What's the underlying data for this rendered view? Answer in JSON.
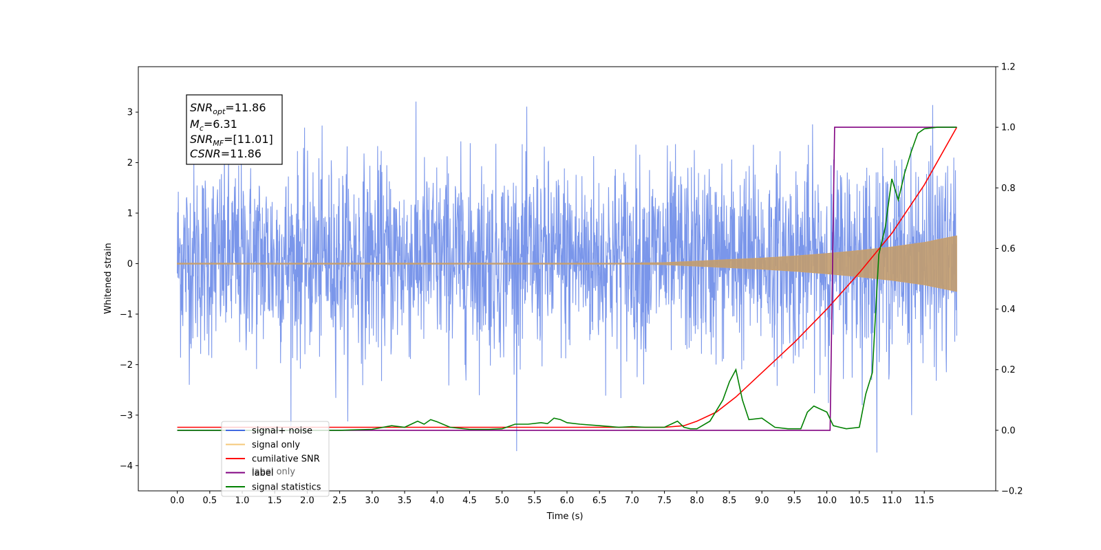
{
  "chart_data": {
    "type": "line",
    "xlabel": "Time (s)",
    "ylabel": "Whitened strain",
    "xlim": [
      -0.6,
      12.6
    ],
    "ylim_left": [
      -4.5,
      3.9
    ],
    "ylim_right": [
      -0.2,
      1.2
    ],
    "x_ticks": [
      "0.0",
      "0.5",
      "1.0",
      "1.5",
      "2.0",
      "2.5",
      "3.0",
      "3.5",
      "4.0",
      "4.5",
      "5.0",
      "5.5",
      "6.0",
      "6.5",
      "7.0",
      "7.5",
      "8.0",
      "8.5",
      "9.0",
      "9.5",
      "10.0",
      "10.5",
      "11.0",
      "11.5"
    ],
    "y_ticks_left": [
      "3",
      "2",
      "1",
      "0",
      "−1",
      "−2",
      "−3",
      "−4"
    ],
    "y_ticks_right": [
      "1.2",
      "1.0",
      "0.8",
      "0.6",
      "0.4",
      "0.2",
      "0.0",
      "−0.2"
    ],
    "info_box": {
      "snr_opt": {
        "symbol": "SNR",
        "sub": "opt",
        "value": "=11.86"
      },
      "mc": {
        "symbol": "M",
        "sub": "c",
        "value": "=6.31"
      },
      "snr_mf": {
        "symbol": "SNR",
        "sub": "MF",
        "value": "=[11.01]"
      },
      "csnr": {
        "symbol": "CSNR",
        "value": "=11.86"
      }
    },
    "legend": {
      "placement": "lower-left",
      "entries": [
        {
          "label": "signal+ noise",
          "color": "#4169e1"
        },
        {
          "label": "signal only",
          "color": "#f5c87a"
        },
        {
          "label": "cumilative SNR",
          "color": "#ff0000"
        },
        {
          "label": "label",
          "color": "#800080"
        },
        {
          "label": "signal statistics",
          "color": "#008000"
        }
      ],
      "hidden_entry": "label only"
    },
    "series": [
      {
        "name": "signal+ noise",
        "axis": "left",
        "color": "#4169e1",
        "note_values": {
          "x_range": [
            0.0,
            12.0
          ],
          "typical_band": [
            -1.9,
            2.1
          ],
          "peak_max": 3.55,
          "peak_min": -4.12
        }
      },
      {
        "name": "signal only",
        "axis": "left",
        "color": "#f5c87a",
        "envelope": {
          "x": [
            0.0,
            7.0,
            7.5,
            8.0,
            8.5,
            9.0,
            9.5,
            10.0,
            10.5,
            11.0,
            11.5,
            12.0
          ],
          "amp": [
            0.01,
            0.01,
            0.02,
            0.05,
            0.08,
            0.11,
            0.15,
            0.2,
            0.26,
            0.33,
            0.42,
            0.55
          ]
        }
      },
      {
        "name": "cumilative SNR",
        "axis": "right",
        "color": "#ff0000",
        "x": [
          0.0,
          7.5,
          7.8,
          8.0,
          8.3,
          8.6,
          9.0,
          9.5,
          10.0,
          10.5,
          11.0,
          11.5,
          12.0
        ],
        "y": [
          0.01,
          0.01,
          0.015,
          0.03,
          0.06,
          0.11,
          0.19,
          0.29,
          0.4,
          0.52,
          0.65,
          0.81,
          1.0
        ]
      },
      {
        "name": "label",
        "axis": "right",
        "color": "#800080",
        "x": [
          0.0,
          10.05,
          10.12,
          12.0
        ],
        "y": [
          0.0,
          0.0,
          1.0,
          1.0
        ]
      },
      {
        "name": "signal statistics",
        "axis": "right",
        "color": "#008000",
        "x": [
          0.0,
          2.5,
          3.0,
          3.3,
          3.5,
          3.7,
          3.8,
          3.9,
          4.0,
          4.2,
          4.5,
          4.8,
          5.0,
          5.2,
          5.4,
          5.6,
          5.7,
          5.8,
          5.9,
          6.0,
          6.2,
          6.5,
          6.8,
          7.0,
          7.2,
          7.5,
          7.7,
          7.8,
          7.9,
          8.0,
          8.2,
          8.4,
          8.5,
          8.6,
          8.7,
          8.8,
          9.0,
          9.2,
          9.4,
          9.6,
          9.7,
          9.8,
          9.9,
          10.0,
          10.1,
          10.2,
          10.3,
          10.5,
          10.6,
          10.7,
          10.8,
          10.9,
          11.0,
          11.1,
          11.2,
          11.3,
          11.4,
          11.5,
          11.7,
          12.0
        ],
        "y": [
          0.0,
          0.0,
          0.003,
          0.015,
          0.01,
          0.03,
          0.02,
          0.035,
          0.028,
          0.01,
          0.003,
          0.003,
          0.005,
          0.02,
          0.02,
          0.025,
          0.022,
          0.04,
          0.035,
          0.025,
          0.02,
          0.015,
          0.01,
          0.012,
          0.01,
          0.01,
          0.03,
          0.01,
          0.005,
          0.005,
          0.03,
          0.1,
          0.16,
          0.2,
          0.1,
          0.035,
          0.04,
          0.01,
          0.005,
          0.005,
          0.06,
          0.08,
          0.07,
          0.06,
          0.015,
          0.01,
          0.005,
          0.01,
          0.12,
          0.19,
          0.58,
          0.67,
          0.83,
          0.76,
          0.85,
          0.92,
          0.98,
          0.995,
          1.0,
          1.0
        ]
      }
    ]
  }
}
